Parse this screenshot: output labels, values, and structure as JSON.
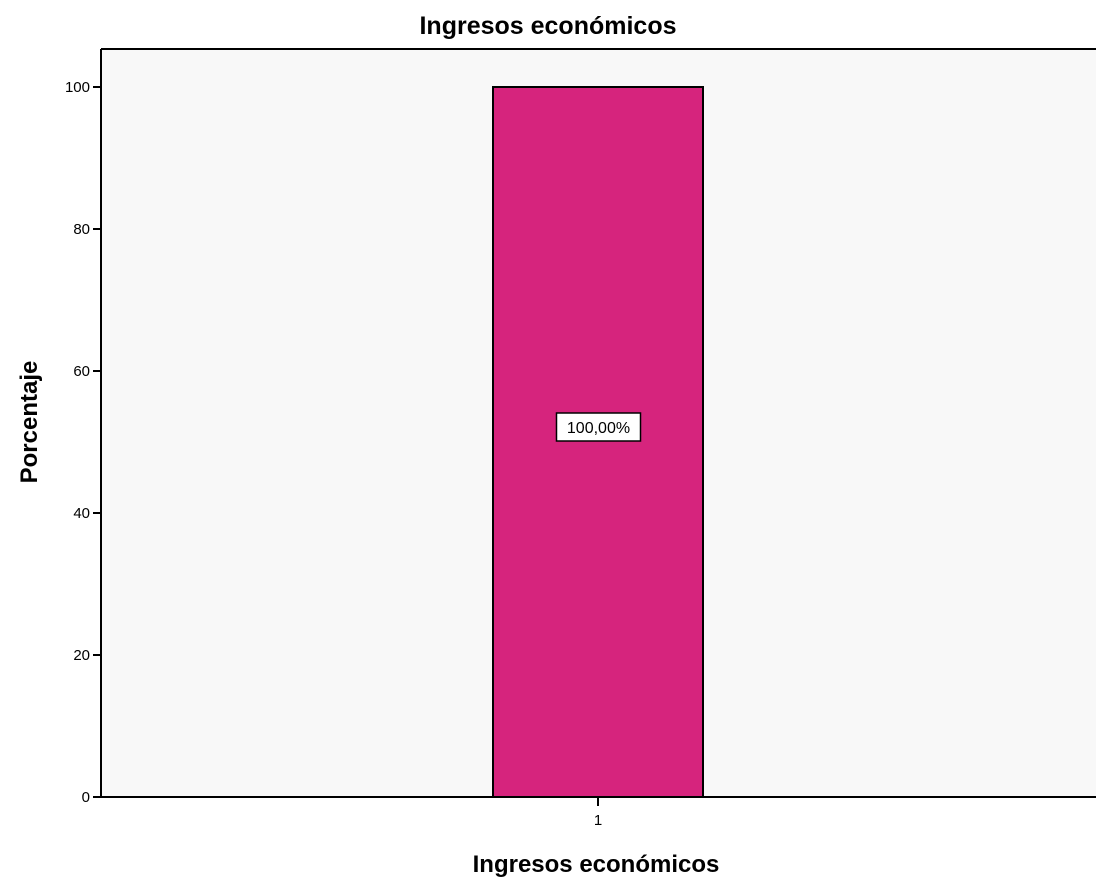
{
  "chart_data": {
    "type": "bar",
    "title": "Ingresos económicos",
    "xlabel": "Ingresos económicos",
    "ylabel": "Porcentaje",
    "categories": [
      "1"
    ],
    "values": [
      100
    ],
    "data_labels": [
      "100,00%"
    ],
    "ylim": [
      0,
      100
    ],
    "yticks": [
      0,
      20,
      40,
      60,
      80,
      100
    ],
    "ytick_labels": [
      "0",
      "20",
      "40",
      "60",
      "80",
      "100"
    ],
    "grid": false,
    "legend": "none",
    "colors": {
      "bar_fill": "#d6247d",
      "bar_stroke": "#000000",
      "plot_background": "#f8f8f8",
      "page_background": "#ffffff",
      "text": "#000000"
    }
  }
}
